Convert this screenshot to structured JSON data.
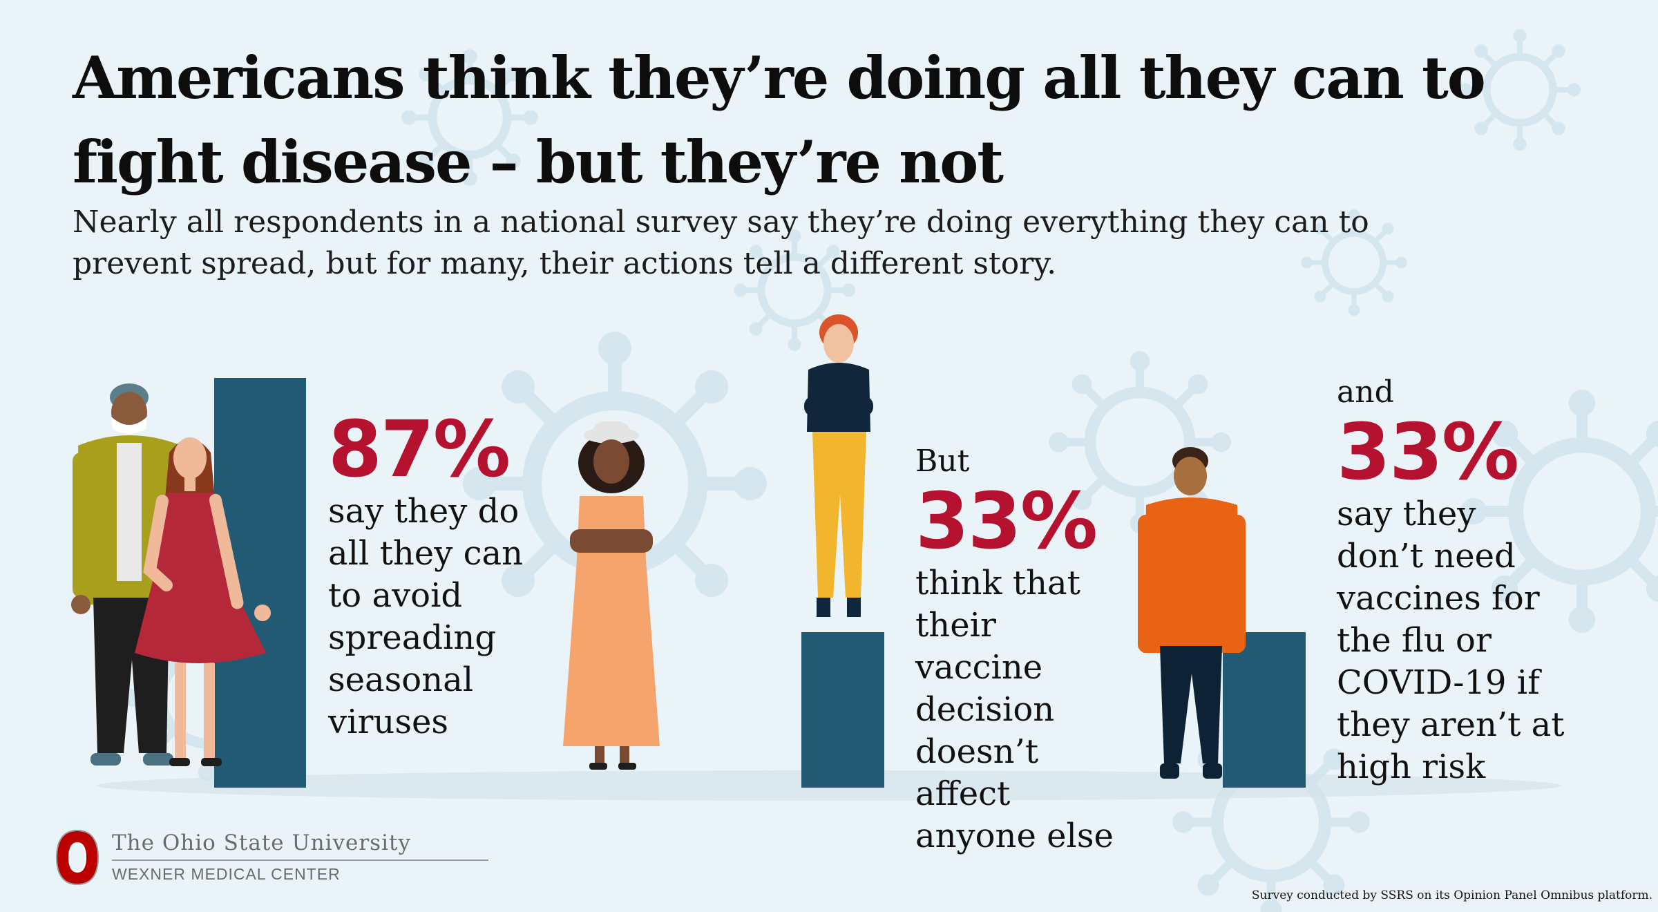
{
  "title": "Americans think they’re doing all they can to fight disease – but they’re not",
  "subtitle": "Nearly all respondents in a national survey say they’re doing everything they can to prevent spread, but for many, their actions tell a different story.",
  "colors": {
    "bar": "#235a73",
    "percent": "#b5122f",
    "background": "#eaf4f8"
  },
  "stats": [
    {
      "lead": "",
      "percent": "87%",
      "description": "say they do all they can to avoid spreading seasonal viruses"
    },
    {
      "lead": "But",
      "percent": "33%",
      "description": "think that their vaccine decision doesn’t affect anyone else"
    },
    {
      "lead": "and",
      "percent": "33%",
      "description": "say they don’t need vaccines for the flu or COVID-19 if they aren’t at high risk"
    }
  ],
  "chart_data": {
    "type": "bar",
    "categories": [
      "say they do all they can to avoid spreading seasonal viruses",
      "think that their vaccine decision doesn’t affect anyone else",
      "say they don’t need vaccines for the flu or COVID-19 if they aren’t at high risk"
    ],
    "values": [
      87,
      33,
      33
    ],
    "value_labels": [
      "87%",
      "33%",
      "33%"
    ],
    "unit": "%",
    "ylim": [
      0,
      100
    ],
    "grid": false,
    "axes_visible": false
  },
  "logo": {
    "name": "The Ohio State University",
    "subname": "WEXNER MEDICAL CENTER"
  },
  "footnote": "Survey conducted by SSRS on its Opinion Panel Omnibus platform.",
  "icons": [
    "virus-icon",
    "hands-icon",
    "ohio-state-block-o-icon"
  ]
}
